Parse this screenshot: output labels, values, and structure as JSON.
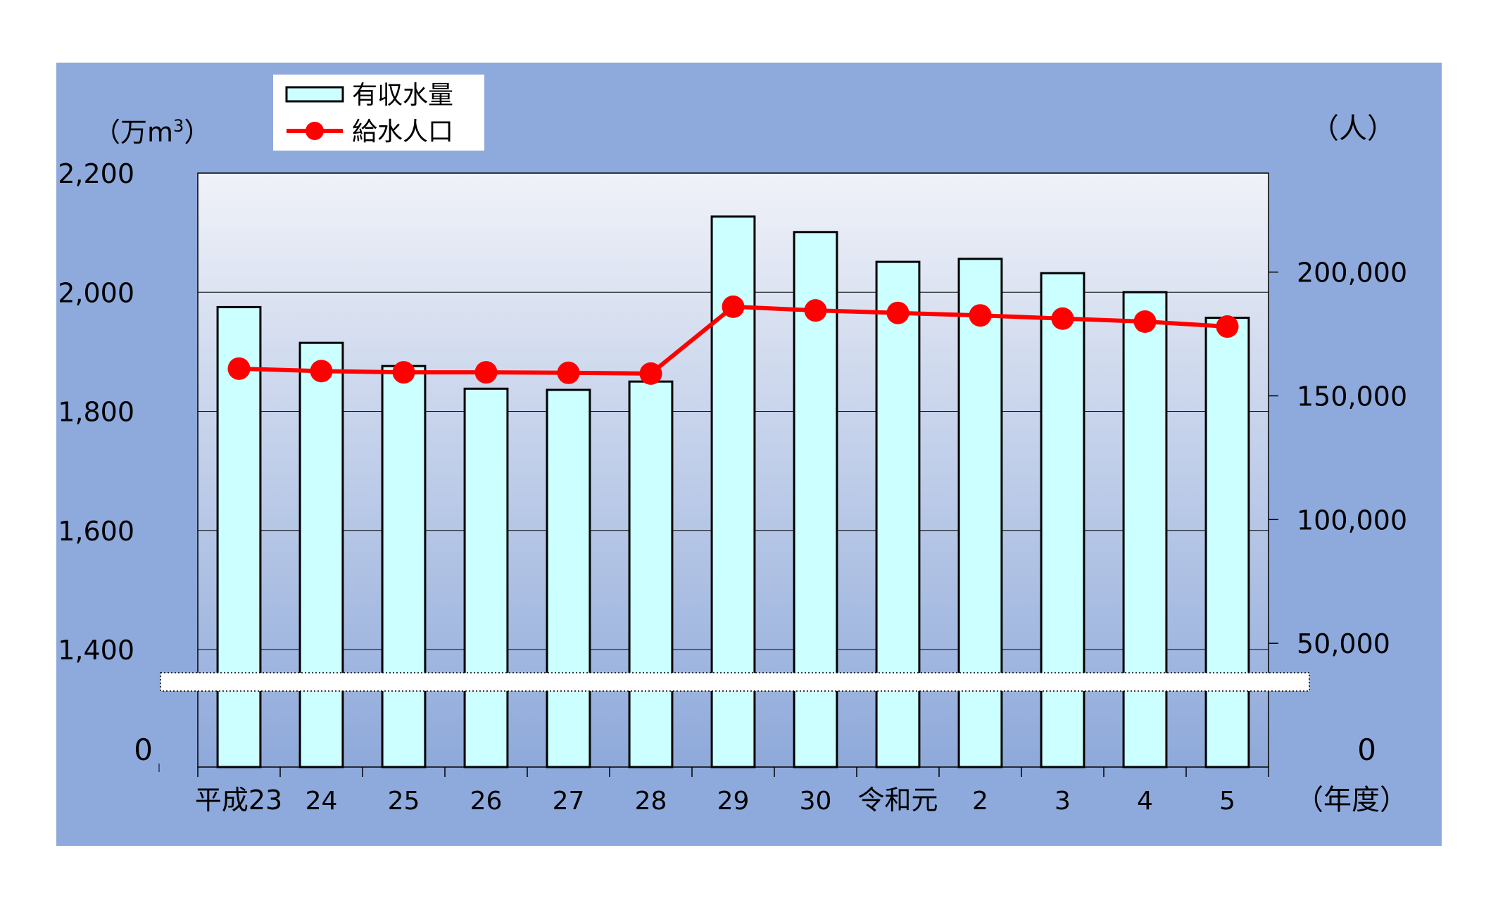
{
  "chart_data": {
    "type": "bar",
    "title": "",
    "categories": [
      "平成23",
      "24",
      "25",
      "26",
      "27",
      "28",
      "29",
      "30",
      "令和元",
      "2",
      "3",
      "4",
      "5"
    ],
    "x_suffix": "（年度）",
    "y_left_unit": "（万m",
    "y_left_unit_sup": "3",
    "y_left_unit_close": "）",
    "y_right_unit": "（人）",
    "y_left_ticks": [
      "2,200",
      "2,000",
      "1,800",
      "1,600",
      "1,400"
    ],
    "y_left_zero": "0",
    "y_right_ticks": [
      "200,000",
      "150,000",
      "100,000",
      "50,000"
    ],
    "y_right_zero": "0",
    "y_left_lim": [
      1340,
      2200
    ],
    "y_left_broken_axis": true,
    "y_right_lim": [
      0,
      240000
    ],
    "grid": true,
    "legend_position": "top-left",
    "series": [
      {
        "name": "有収水量",
        "type": "bar",
        "axis": "left",
        "color": "#ccffff",
        "values": [
          1975,
          1915,
          1876,
          1838,
          1836,
          1850,
          2127,
          2101,
          2051,
          2056,
          2032,
          2000,
          1957
        ]
      },
      {
        "name": "給水人口",
        "type": "line",
        "axis": "right",
        "color": "#ff0000",
        "values": [
          161000,
          160000,
          159500,
          159500,
          159300,
          159000,
          186000,
          184500,
          183500,
          182500,
          181200,
          180000,
          178000
        ]
      }
    ]
  },
  "colors": {
    "frame_background": "#8eaadc",
    "plot_gradient_top": "#f0f2f8",
    "plot_gradient_bottom": "#8ea9da",
    "bar_fill": "#ccffff",
    "line": "#ff0000"
  }
}
